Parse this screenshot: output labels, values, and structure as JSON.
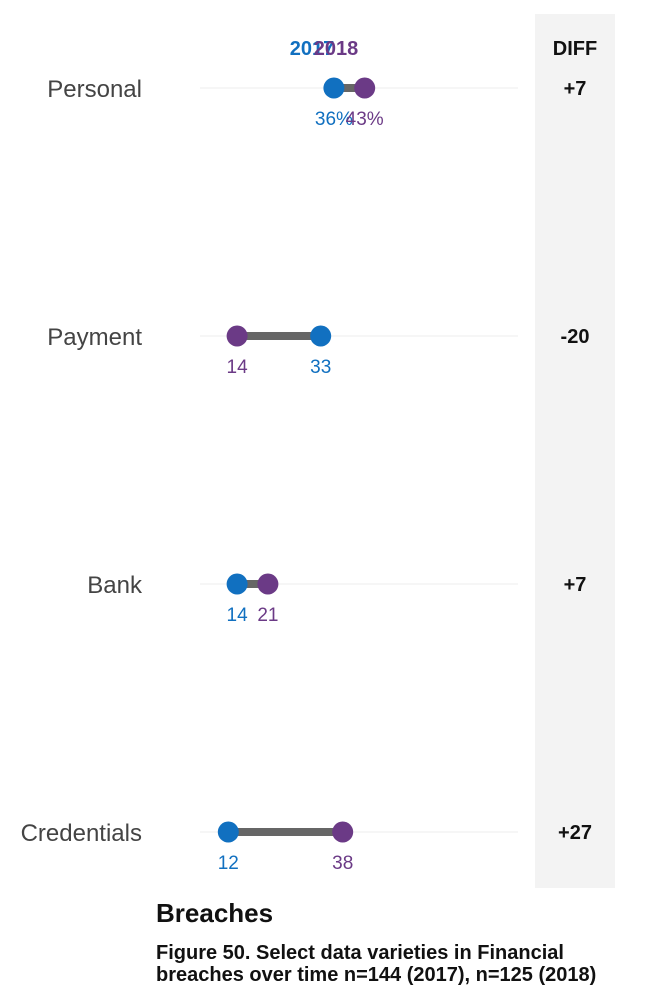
{
  "section_title": "Breaches",
  "caption": "Figure 50. Select data varieties in Financial breaches over time n=144 (2017), n=125 (2018)",
  "colors": {
    "series_2017": "#1170c0",
    "series_2018": "#6b3a86",
    "connector": "#666666",
    "diff_panel": "#f3f3f3",
    "gridline": "#eeeeee"
  },
  "diff_header": "DIFF",
  "chart_data": {
    "type": "dumbbell",
    "categories": [
      "Personal",
      "Payment",
      "Bank",
      "Credentials"
    ],
    "series": [
      {
        "name": "2017",
        "values": [
          36,
          33,
          14,
          12
        ],
        "labels": [
          "36%",
          "33",
          "14",
          "12"
        ]
      },
      {
        "name": "2018",
        "values": [
          43,
          14,
          21,
          38
        ],
        "labels": [
          "43%",
          "14",
          "21",
          "38"
        ]
      }
    ],
    "diff": [
      "+7",
      "-20",
      "+7",
      "+27"
    ],
    "xlim": [
      0,
      100
    ],
    "legend": "top"
  }
}
